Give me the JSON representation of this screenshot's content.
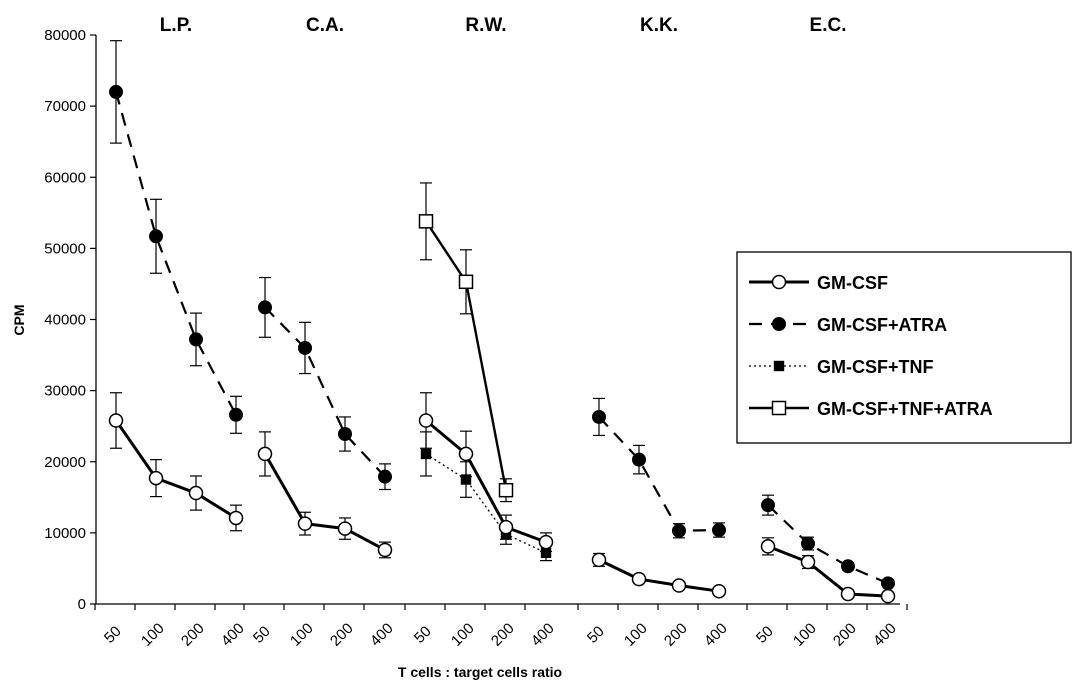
{
  "chart_data": {
    "type": "line",
    "ylabel": "CPM",
    "xlabel": "T cells : target cells ratio",
    "ylim": [
      0,
      80000
    ],
    "yticks": [
      0,
      10000,
      20000,
      30000,
      40000,
      50000,
      60000,
      70000,
      80000
    ],
    "categories": [
      "50",
      "100",
      "200",
      "400"
    ],
    "grid": false,
    "legend_position": "right",
    "groups": [
      {
        "name": "L.P.",
        "series": [
          {
            "name": "GM-CSF",
            "values": [
              25800,
              17700,
              15600,
              12100
            ],
            "errors": [
              3900,
              2600,
              2400,
              1800
            ]
          },
          {
            "name": "GM-CSF+ATRA",
            "values": [
              72000,
              51700,
              37200,
              26600
            ],
            "errors": [
              7200,
              5200,
              3700,
              2600
            ]
          }
        ]
      },
      {
        "name": "C.A.",
        "series": [
          {
            "name": "GM-CSF",
            "values": [
              21100,
              11300,
              10600,
              7600
            ],
            "errors": [
              3100,
              1600,
              1500,
              1100
            ]
          },
          {
            "name": "GM-CSF+ATRA",
            "values": [
              41700,
              36000,
              23900,
              17900
            ],
            "errors": [
              4200,
              3600,
              2400,
              1800
            ]
          }
        ]
      },
      {
        "name": "R.W.",
        "series": [
          {
            "name": "GM-CSF",
            "values": [
              25800,
              21100,
              10800,
              8700
            ],
            "errors": [
              3900,
              3200,
              1700,
              1300
            ]
          },
          {
            "name": "GM-CSF+TNF",
            "values": [
              21100,
              17500,
              9800,
              7200
            ],
            "errors": [
              3100,
              2500,
              1400,
              1100
            ]
          },
          {
            "name": "GM-CSF+TNF+ATRA",
            "values": [
              53800,
              45300,
              16000,
              null
            ],
            "errors": [
              5400,
              4500,
              1600,
              null
            ]
          }
        ]
      },
      {
        "name": "K.K.",
        "series": [
          {
            "name": "GM-CSF",
            "values": [
              6200,
              3500,
              2600,
              1800
            ],
            "errors": [
              900,
              500,
              400,
              300
            ]
          },
          {
            "name": "GM-CSF+ATRA",
            "values": [
              26300,
              20300,
              10300,
              10400
            ],
            "errors": [
              2600,
              2000,
              1000,
              1000
            ]
          }
        ]
      },
      {
        "name": "E.C.",
        "series": [
          {
            "name": "GM-CSF",
            "values": [
              8100,
              5900,
              1400,
              1100
            ],
            "errors": [
              1200,
              900,
              300,
              200
            ]
          },
          {
            "name": "GM-CSF+ATRA",
            "values": [
              13900,
              8500,
              5300,
              2900
            ],
            "errors": [
              1400,
              900,
              500,
              300
            ]
          }
        ]
      }
    ],
    "legend": [
      {
        "name": "GM-CSF",
        "marker": "open-circle",
        "line": "solid"
      },
      {
        "name": "GM-CSF+ATRA",
        "marker": "filled-circle",
        "line": "dashed"
      },
      {
        "name": "GM-CSF+TNF",
        "marker": "filled-square",
        "line": "dotted"
      },
      {
        "name": "GM-CSF+TNF+ATRA",
        "marker": "open-square",
        "line": "solid"
      }
    ]
  }
}
